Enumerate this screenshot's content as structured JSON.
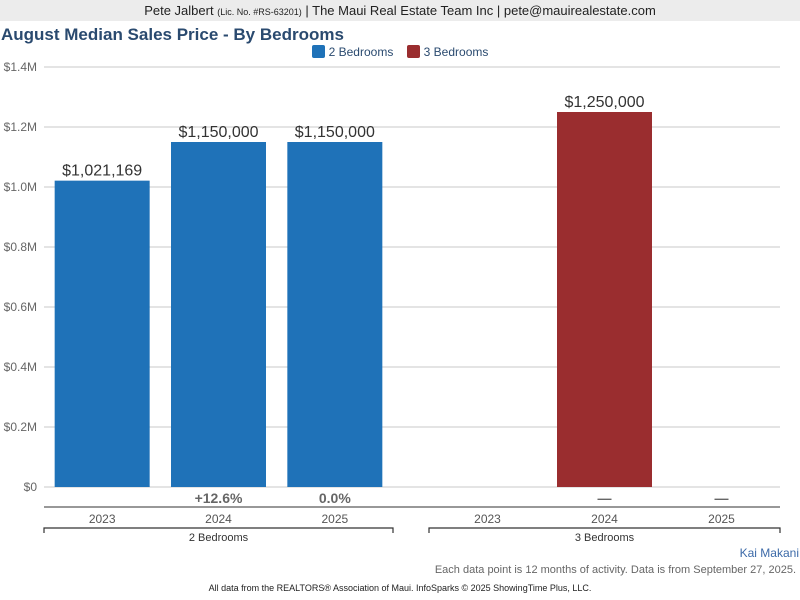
{
  "header": {
    "agent_name": "Pete Jalbert",
    "license": "(Lic. No. #RS-63201)",
    "rest": "| The Maui Real Estate Team Inc | pete@mauirealestate.com"
  },
  "footer": {
    "agent_link": "Kai Makani",
    "note": "Each data point is 12 months of activity. Data is from September 27, 2025.",
    "source": "All data from the REALTORS® Association of Maui. InfoSparks © 2025 ShowingTime Plus, LLC."
  },
  "chart_data": {
    "type": "bar",
    "title": "August Median Sales Price - By Bedrooms",
    "xlabel": "",
    "ylabel": "",
    "ylim": [
      0,
      1400000
    ],
    "yticks": [
      {
        "value": 0,
        "label": "$0"
      },
      {
        "value": 200000,
        "label": "$0.2M"
      },
      {
        "value": 400000,
        "label": "$0.4M"
      },
      {
        "value": 600000,
        "label": "$0.6M"
      },
      {
        "value": 800000,
        "label": "$0.8M"
      },
      {
        "value": 1000000,
        "label": "$1.0M"
      },
      {
        "value": 1200000,
        "label": "$1.2M"
      },
      {
        "value": 1400000,
        "label": "$1.4M"
      }
    ],
    "grid": true,
    "legend_position": "top-center",
    "categories": [
      "2023",
      "2024",
      "2025"
    ],
    "series": [
      {
        "name": "2 Bedrooms",
        "color": "#1f72b8",
        "values": [
          1021169,
          1150000,
          1150000
        ],
        "value_labels": [
          "$1,021,169",
          "$1,150,000",
          "$1,150,000"
        ],
        "change_labels": [
          "",
          "+12.6%",
          "0.0%"
        ]
      },
      {
        "name": "3 Bedrooms",
        "color": "#9a2d2f",
        "values": [
          null,
          1250000,
          null
        ],
        "value_labels": [
          "",
          "$1,250,000",
          ""
        ],
        "change_labels": [
          "",
          "—",
          "—"
        ]
      }
    ]
  }
}
